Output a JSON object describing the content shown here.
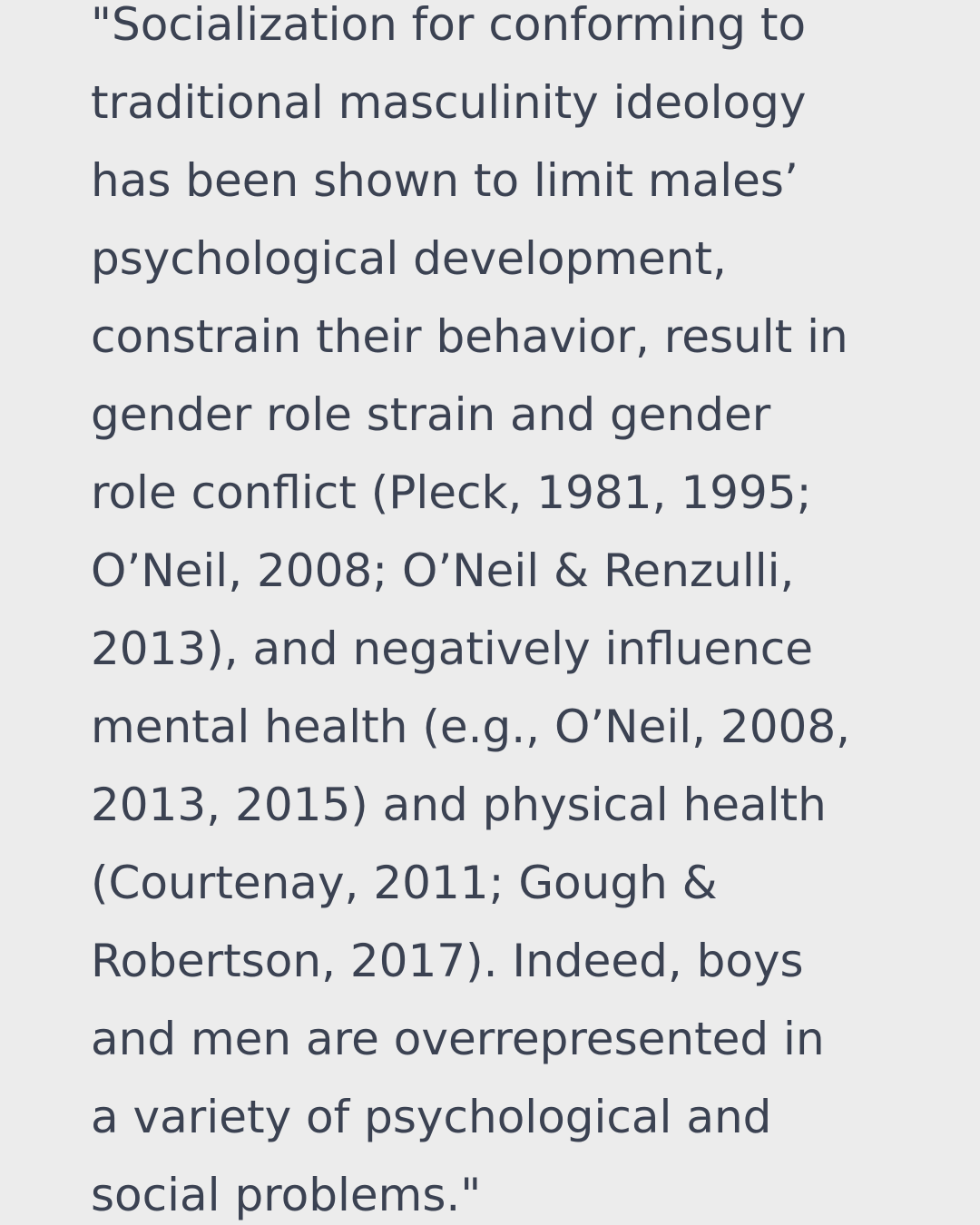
{
  "document": {
    "lines": [
      "\"Socialization for conforming to",
      "traditional masculinity ideology",
      "has been shown to limit males’",
      "psychological development,",
      "constrain their behavior, result in",
      "gender role strain and gender",
      "role conflict (Pleck, 1981, 1995;",
      "O’Neil, 2008; O’Neil & Renzulli,",
      "2013), and negatively influence",
      "mental health (e.g., O’Neil, 2008,",
      "2013, 2015) and physical health",
      "(Courtenay, 2011; Gough &",
      "Robertson, 2017). Indeed, boys",
      "and men are overrepresented in",
      "a variety of psychological and",
      "social problems.\""
    ]
  }
}
